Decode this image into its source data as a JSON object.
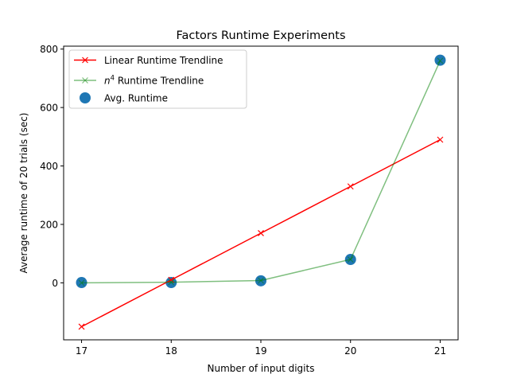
{
  "chart_data": {
    "type": "line",
    "title": "Factors Runtime Experiments",
    "xlabel": "Number of input digits",
    "ylabel": "Average runtime of 20 trials (sec)",
    "xlim": [
      16.8,
      21.2
    ],
    "ylim": [
      -195,
      810
    ],
    "xticks": [
      17,
      18,
      19,
      20,
      21
    ],
    "yticks": [
      0,
      200,
      400,
      600,
      800
    ],
    "legend_position": "upper-left",
    "series": [
      {
        "name": "Linear Runtime Trendline",
        "kind": "line",
        "marker": "x",
        "color": "#ff0000",
        "x": [
          17,
          18,
          19,
          20,
          21
        ],
        "y": [
          -150,
          10,
          170,
          330,
          490
        ]
      },
      {
        "name": "n4 Runtime Trendline",
        "name_base": "n",
        "name_sup": "4",
        "name_rest": " Runtime Trendline",
        "kind": "line",
        "marker": "x",
        "color": "#008000",
        "x": [
          17,
          18,
          19,
          20,
          21
        ],
        "y": [
          0,
          2,
          8,
          80,
          760
        ]
      },
      {
        "name": "Avg. Runtime",
        "kind": "scatter",
        "marker": "circle",
        "color": "#1f77b4",
        "x": [
          17,
          18,
          19,
          20,
          21
        ],
        "y": [
          1,
          1,
          7,
          80,
          762
        ]
      }
    ]
  }
}
